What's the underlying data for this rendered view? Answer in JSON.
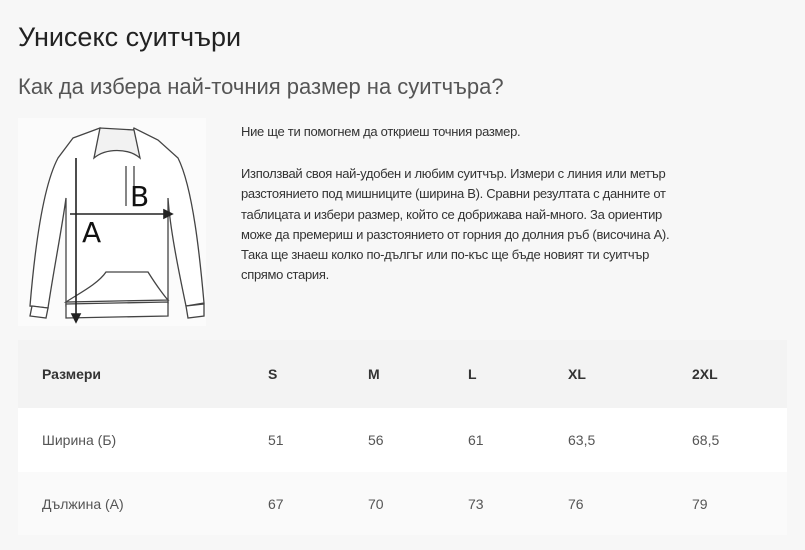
{
  "title": "Унисекс суитчъри",
  "subtitle": "Как да избера най-точния размер на суитчъра?",
  "image": {
    "icon": "hoodie-measurement-diagram",
    "label_a": "A",
    "label_b": "B"
  },
  "intro": "Ние ще ти помогнем да откриеш точния размер.",
  "description_lines": [
    "Използвай своя най-удобен и любим суитчър. Измери с линия или метър",
    "разстоянието под мишниците (ширина В). Сравни резултата с данните от",
    "таблицата и избери размер, който се добрижава най-много. За ориентир",
    "може да премериш и разстоянието от горния до долния ръб (височина А).",
    "Така ще знаеш колко по-дългъг или по-къс ще бъде новият ти суитчър",
    "спрямо стария."
  ],
  "table": {
    "headers": [
      "Размери",
      "S",
      "M",
      "L",
      "XL",
      "2XL"
    ],
    "rows": [
      [
        "Ширина (Б)",
        "51",
        "56",
        "61",
        "63,5",
        "68,5"
      ],
      [
        "Дължина (А)",
        "67",
        "70",
        "73",
        "76",
        "79"
      ]
    ]
  }
}
